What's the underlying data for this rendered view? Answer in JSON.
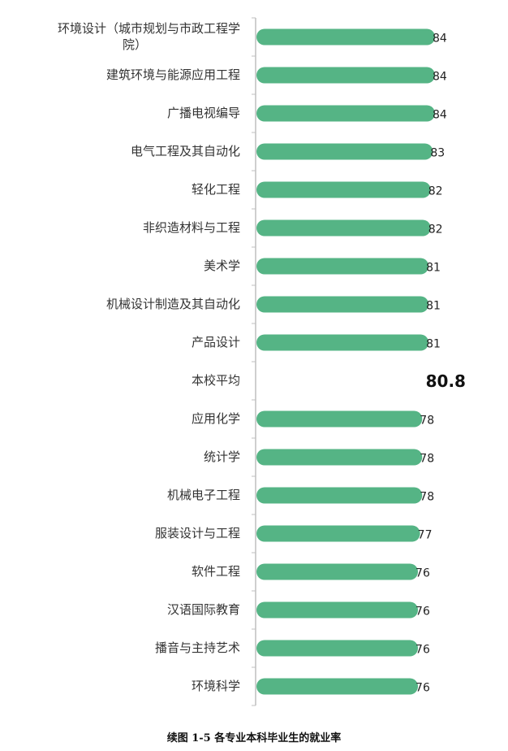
{
  "chart_data": {
    "type": "bar",
    "orientation": "horizontal",
    "categories": [
      "环境设计（城市规划与市政工程学院）",
      "建筑环境与能源应用工程",
      "广播电视编导",
      "电气工程及其自动化",
      "轻化工程",
      "非织造材料与工程",
      "美术学",
      "机械设计制造及其自动化",
      "产品设计",
      "本校平均",
      "应用化学",
      "统计学",
      "机械电子工程",
      "服装设计与工程",
      "软件工程",
      "汉语国际教育",
      "播音与主持艺术",
      "环境科学"
    ],
    "category_lines": [
      [
        "环境设计（城市规划与市政工程学",
        "院）"
      ],
      [
        "建筑环境与能源应用工程"
      ],
      [
        "广播电视编导"
      ],
      [
        "电气工程及其自动化"
      ],
      [
        "轻化工程"
      ],
      [
        "非织造材料与工程"
      ],
      [
        "美术学"
      ],
      [
        "机械设计制造及其自动化"
      ],
      [
        "产品设计"
      ],
      [
        "本校平均"
      ],
      [
        "应用化学"
      ],
      [
        "统计学"
      ],
      [
        "机械电子工程"
      ],
      [
        "服装设计与工程"
      ],
      [
        "软件工程"
      ],
      [
        "汉语国际教育"
      ],
      [
        "播音与主持艺术"
      ],
      [
        "环境科学"
      ]
    ],
    "values": [
      84,
      84,
      84,
      83,
      82,
      82,
      81,
      81,
      81,
      80.8,
      78,
      78,
      78,
      77,
      76,
      76,
      76,
      76
    ],
    "value_labels": [
      "84",
      "84",
      "84",
      "83",
      "82",
      "82",
      "81",
      "81",
      "81",
      "80.8",
      "78",
      "78",
      "78",
      "77",
      "76",
      "76",
      "76",
      "76"
    ],
    "highlight_category": "本校平均",
    "highlight_style": "bar omitted, large bold value label",
    "xlim": [
      0,
      84
    ],
    "bar_color": "#55b485",
    "axis_color": "#bfbfbf",
    "grid": false,
    "legend": "none",
    "title": "",
    "xlabel": "",
    "ylabel": ""
  },
  "caption": "续图 1-5 各专业本科毕业生的就业率"
}
